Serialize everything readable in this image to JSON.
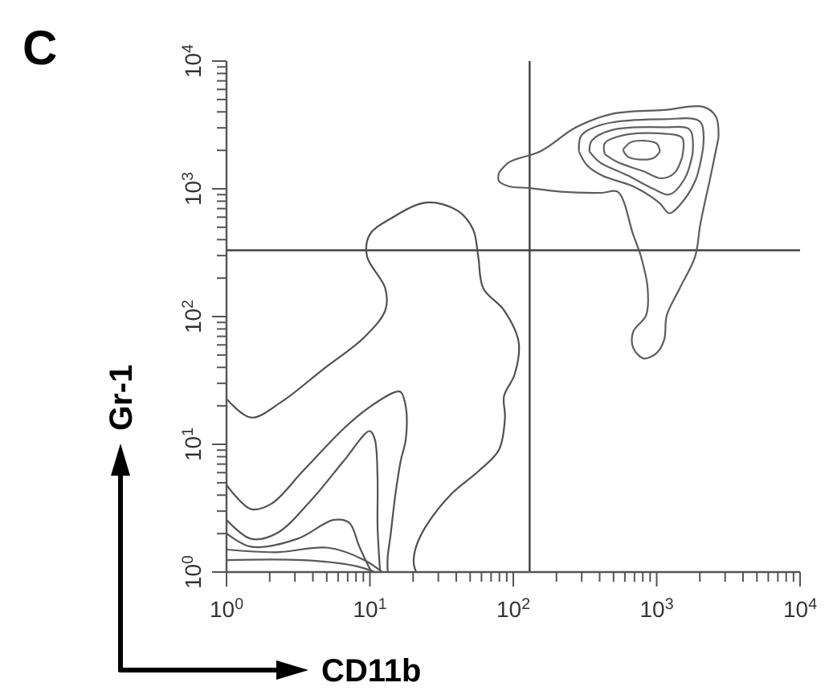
{
  "chart_data": {
    "type": "line",
    "title": "C",
    "xlabel": "CD11b",
    "ylabel": "Gr-1",
    "log": "xy",
    "marker": "none",
    "line_style": "solid",
    "xlim": [
      1,
      10000
    ],
    "ylim": [
      1,
      10000
    ],
    "xticks": [
      {
        "value": 1,
        "label": "10$^{0}$"
      },
      {
        "value": 2,
        "label": null
      },
      {
        "value": 3,
        "label": null
      },
      {
        "value": 4,
        "label": null
      },
      {
        "value": 5,
        "label": null
      },
      {
        "value": 6,
        "label": null
      },
      {
        "value": 7,
        "label": null
      },
      {
        "value": 8,
        "label": null
      },
      {
        "value": 9,
        "label": null
      },
      {
        "value": 10,
        "label": "10$^{1}$"
      },
      {
        "value": 20,
        "label": null
      },
      {
        "value": 30,
        "label": null
      },
      {
        "value": 40,
        "label": null
      },
      {
        "value": 50,
        "label": null
      },
      {
        "value": 60,
        "label": null
      },
      {
        "value": 70,
        "label": null
      },
      {
        "value": 80,
        "label": null
      },
      {
        "value": 90,
        "label": null
      },
      {
        "value": 100,
        "label": "10$^{2}$"
      },
      {
        "value": 200,
        "label": null
      },
      {
        "value": 300,
        "label": null
      },
      {
        "value": 400,
        "label": null
      },
      {
        "value": 500,
        "label": null
      },
      {
        "value": 600,
        "label": null
      },
      {
        "value": 700,
        "label": null
      },
      {
        "value": 800,
        "label": null
      },
      {
        "value": 900,
        "label": null
      },
      {
        "value": 1000,
        "label": "10$^{3}$"
      },
      {
        "value": 2000,
        "label": null
      },
      {
        "value": 3000,
        "label": null
      },
      {
        "value": 4000,
        "label": null
      },
      {
        "value": 5000,
        "label": null
      },
      {
        "value": 6000,
        "label": null
      },
      {
        "value": 7000,
        "label": null
      },
      {
        "value": 8000,
        "label": null
      },
      {
        "value": 9000,
        "label": null
      },
      {
        "value": 10000,
        "label": "10$^{4}$"
      }
    ],
    "yticks": [
      {
        "value": 1,
        "label": "10$^{0}$"
      },
      {
        "value": 2,
        "label": null
      },
      {
        "value": 3,
        "label": null
      },
      {
        "value": 4,
        "label": null
      },
      {
        "value": 5,
        "label": null
      },
      {
        "value": 6,
        "label": null
      },
      {
        "value": 7,
        "label": null
      },
      {
        "value": 8,
        "label": null
      },
      {
        "value": 9,
        "label": null
      },
      {
        "value": 10,
        "label": "10$^{1}$"
      },
      {
        "value": 20,
        "label": null
      },
      {
        "value": 30,
        "label": null
      },
      {
        "value": 40,
        "label": null
      },
      {
        "value": 50,
        "label": null
      },
      {
        "value": 60,
        "label": null
      },
      {
        "value": 70,
        "label": null
      },
      {
        "value": 80,
        "label": null
      },
      {
        "value": 90,
        "label": null
      },
      {
        "value": 100,
        "label": "10$^{2}$"
      },
      {
        "value": 200,
        "label": null
      },
      {
        "value": 300,
        "label": null
      },
      {
        "value": 400,
        "label": null
      },
      {
        "value": 500,
        "label": null
      },
      {
        "value": 600,
        "label": null
      },
      {
        "value": 700,
        "label": null
      },
      {
        "value": 800,
        "label": null
      },
      {
        "value": 900,
        "label": null
      },
      {
        "value": 1000,
        "label": "10$^{3}$"
      },
      {
        "value": 2000,
        "label": null
      },
      {
        "value": 3000,
        "label": null
      },
      {
        "value": 4000,
        "label": null
      },
      {
        "value": 5000,
        "label": null
      },
      {
        "value": 6000,
        "label": null
      },
      {
        "value": 7000,
        "label": null
      },
      {
        "value": 8000,
        "label": null
      },
      {
        "value": 9000,
        "label": null
      },
      {
        "value": 10000,
        "label": "10$^{4}$"
      }
    ],
    "ref_lines": [
      {
        "axis": "x",
        "value": 130,
        "color": "#404040"
      },
      {
        "axis": "y",
        "value": 330,
        "color": "#424242"
      }
    ],
    "series": [
      {
        "color": "#505050",
        "x": [
          1,
          1.48,
          2.43,
          4.72,
          9.17,
          12.8,
          12.8,
          9.55,
          9.96,
          13.9,
          24.8,
          40.8,
          52.4,
          56.9,
          61.8,
          86.1,
          109,
          102,
          86.1,
          87.5,
          79.3,
          56.9,
          37.6,
          24.8,
          21.0,
          20.2,
          21.0
        ],
        "values": [
          22.7,
          16.2,
          21.6,
          38.7,
          69.2,
          112,
          166,
          296,
          437,
          583,
          781,
          675,
          481,
          296,
          166,
          112,
          62.8,
          35.1,
          23.8,
          16.2,
          9.03,
          6.13,
          4.16,
          2.32,
          1.58,
          1.18,
          1
        ]
      },
      {
        "color": "#525252",
        "x": [
          1,
          1.48,
          2.06,
          3.39,
          6.58,
          9.96,
          15.1,
          16.4,
          17.8,
          17.8,
          16.4,
          15.1,
          13.9,
          13.3,
          13.3
        ],
        "values": [
          4.81,
          3.11,
          3.43,
          6.13,
          13.3,
          19.6,
          25.7,
          25.7,
          19.6,
          11.0,
          7.44,
          4.16,
          1.91,
          1.3,
          1
        ]
      },
      {
        "color": "#545454",
        "x": [
          1,
          1.48,
          2.24,
          4.0,
          6.58,
          9.96,
          10.8,
          11.3,
          11.3,
          11.6,
          11.8
        ],
        "values": [
          2.56,
          1.82,
          2.01,
          3.78,
          7.44,
          12.7,
          11.0,
          5.56,
          2.32,
          1.3,
          1
        ]
      },
      {
        "color": "#565656",
        "x": [
          1,
          1.48,
          3.12,
          5.57,
          7.15,
          8.44,
          9.96,
          10.4
        ],
        "values": [
          2.01,
          1.58,
          1.82,
          2.56,
          2.44,
          1.58,
          1.07,
          1
        ]
      },
      {
        "color": "#585858",
        "x": [
          1,
          2.24,
          5.13,
          9.17,
          12.2
        ],
        "values": [
          1.5,
          1.43,
          1.55,
          1.24,
          1
        ]
      },
      {
        "color": "#5a5a5a",
        "x": [
          1,
          3.39,
          7.77,
          10.8
        ],
        "values": [
          1.24,
          1.24,
          1.12,
          1
        ]
      },
      {
        "color": "#5c5c5c",
        "x": [
          79.3,
          93.5,
          154,
          275,
          492,
          1128,
          2103,
          2588,
          2697
        ],
        "values": [
          1330,
          1616,
          1963,
          3035,
          3866,
          4140,
          4388,
          3681,
          2500
        ]
      },
      {
        "color": "#5d5d5d",
        "x": [
          79.3,
          79.3,
          93.5,
          130,
          215,
          417,
          534,
          686,
          776,
          865,
          843,
          686,
          686,
          809,
          996,
          1128,
          1175,
          1446,
          1855,
          2016,
          2381,
          2697
        ],
        "values": [
          1330,
          1151,
          1045,
          1014,
          948,
          930,
          948,
          437,
          296,
          166,
          102,
          76.2,
          57.0,
          47.0,
          51.7,
          65.9,
          102,
          166,
          296,
          530,
          1268,
          2500
        ]
      },
      {
        "color": "#5e5e5e",
        "x": [
          287,
          299,
          417,
          1128,
          2016,
          2103
        ],
        "values": [
          1963,
          2624,
          3186,
          3508,
          3342,
          2061
        ]
      },
      {
        "color": "#5f5f5f",
        "x": [
          287,
          325,
          417,
          686,
          1038,
          1225,
          1446,
          1855,
          2103
        ],
        "values": [
          1963,
          1539,
          1268,
          1045,
          781,
          643,
          744,
          1151,
          2061
        ]
      },
      {
        "color": "#606060",
        "x": [
          339,
          353,
          492,
          1128,
          1708,
          1779
        ],
        "values": [
          1963,
          2383,
          2892,
          3035,
          2892,
          1870
        ]
      },
      {
        "color": "#616161",
        "x": [
          339,
          400,
          631,
          955,
          1225,
          1572,
          1779
        ],
        "values": [
          1963,
          1616,
          1268,
          996,
          903,
          1208,
          1870
        ]
      },
      {
        "color": "#626262",
        "x": [
          434,
          434,
          581,
          1128,
          1508,
          1508
        ],
        "values": [
          1870,
          2269,
          2624,
          2702,
          2500,
          1782
        ]
      },
      {
        "color": "#636363",
        "x": [
          434,
          534,
          809,
          1082,
          1331,
          1508
        ],
        "values": [
          1870,
          1616,
          1371,
          1208,
          1330,
          1782
        ]
      },
      {
        "color": "#646464",
        "x": [
          581,
          658,
          809,
          996,
          1055
        ],
        "values": [
          2020,
          2312,
          2383,
          2269,
          1963
        ]
      },
      {
        "color": "#656565",
        "x": [
          581,
          631,
          776,
          955,
          1055
        ],
        "values": [
          2020,
          1782,
          1694,
          1746,
          1963
        ]
      }
    ]
  }
}
